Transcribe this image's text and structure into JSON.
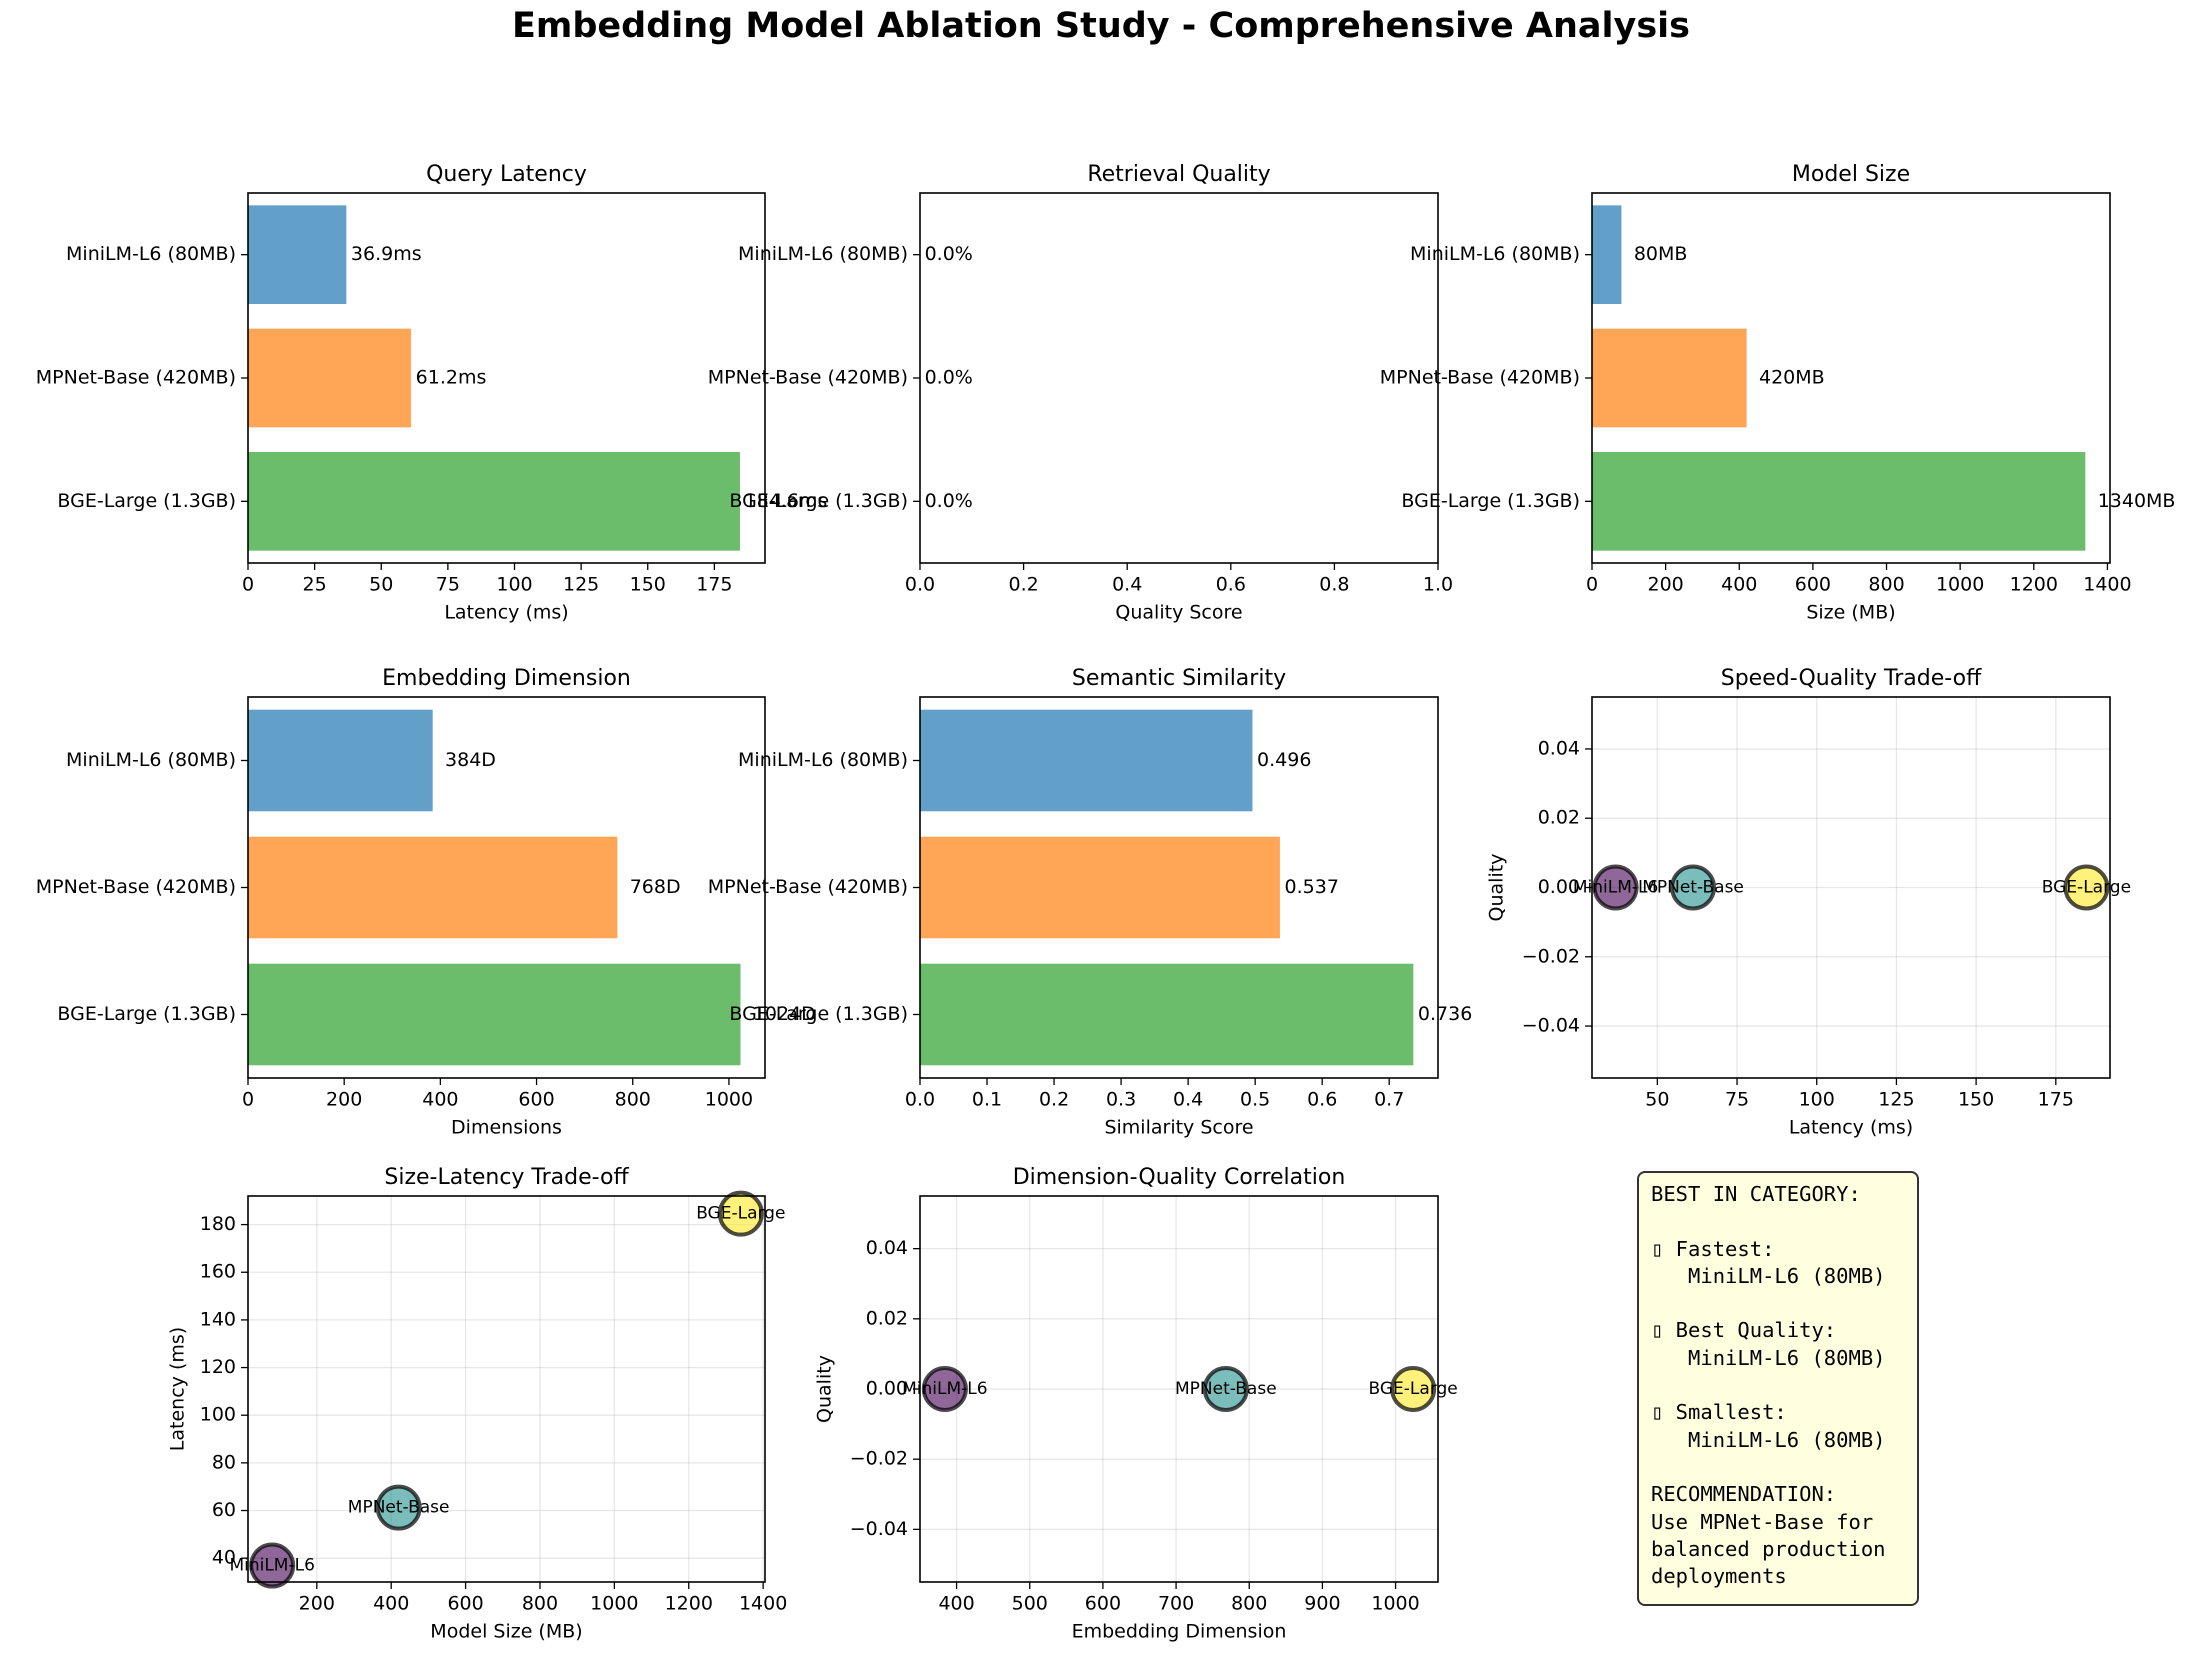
{
  "title": "Embedding Model Ablation Study - Comprehensive Analysis",
  "colors": {
    "blue": "#1f77b4",
    "orange": "#ff7f0e",
    "green": "#2ca02c",
    "purple": "#440154",
    "teal": "#21918c",
    "yellow": "#fde725"
  },
  "chart_data": [
    {
      "id": "latency",
      "type": "bar",
      "orientation": "horizontal",
      "title": "Query Latency",
      "xlabel": "Latency (ms)",
      "categories": [
        "MiniLM-L6 (80MB)",
        "MPNet-Base (420MB)",
        "BGE-Large (1.3GB)"
      ],
      "values": [
        36.9,
        61.2,
        184.6
      ],
      "labels": [
        "36.9ms",
        "61.2ms",
        "184.6ms"
      ],
      "xlim": [
        0,
        194
      ],
      "xticks": [
        0,
        25,
        50,
        75,
        100,
        125,
        150,
        175
      ]
    },
    {
      "id": "quality",
      "type": "bar",
      "orientation": "horizontal",
      "title": "Retrieval Quality",
      "xlabel": "Quality Score",
      "categories": [
        "MiniLM-L6 (80MB)",
        "MPNet-Base (420MB)",
        "BGE-Large (1.3GB)"
      ],
      "values": [
        0,
        0,
        0
      ],
      "labels": [
        "0.0%",
        "0.0%",
        "0.0%"
      ],
      "xlim": [
        0,
        1
      ],
      "xticks": [
        0.0,
        0.2,
        0.4,
        0.6,
        0.8,
        1.0
      ]
    },
    {
      "id": "size",
      "type": "bar",
      "orientation": "horizontal",
      "title": "Model Size",
      "xlabel": "Size (MB)",
      "categories": [
        "MiniLM-L6 (80MB)",
        "MPNet-Base (420MB)",
        "BGE-Large (1.3GB)"
      ],
      "values": [
        80,
        420,
        1340
      ],
      "labels": [
        "80MB",
        "420MB",
        "1340MB"
      ],
      "xlim": [
        0,
        1407
      ],
      "xticks": [
        0,
        200,
        400,
        600,
        800,
        1000,
        1200,
        1400
      ]
    },
    {
      "id": "dimension",
      "type": "bar",
      "orientation": "horizontal",
      "title": "Embedding Dimension",
      "xlabel": "Dimensions",
      "categories": [
        "MiniLM-L6 (80MB)",
        "MPNet-Base (420MB)",
        "BGE-Large (1.3GB)"
      ],
      "values": [
        384,
        768,
        1024
      ],
      "labels": [
        "384D",
        "768D",
        "1024D"
      ],
      "xlim": [
        0,
        1075
      ],
      "xticks": [
        0,
        200,
        400,
        600,
        800,
        1000
      ]
    },
    {
      "id": "similarity",
      "type": "bar",
      "orientation": "horizontal",
      "title": "Semantic Similarity",
      "xlabel": "Similarity Score",
      "categories": [
        "MiniLM-L6 (80MB)",
        "MPNet-Base (420MB)",
        "BGE-Large (1.3GB)"
      ],
      "values": [
        0.496,
        0.537,
        0.736
      ],
      "labels": [
        "0.496",
        "0.537",
        "0.736"
      ],
      "xlim": [
        0,
        0.7728
      ],
      "xticks": [
        0.0,
        0.1,
        0.2,
        0.3,
        0.4,
        0.5,
        0.6,
        0.7
      ]
    },
    {
      "id": "speed_quality",
      "type": "scatter",
      "title": "Speed-Quality Trade-off",
      "xlabel": "Latency (ms)",
      "ylabel": "Quality",
      "grid": true,
      "points": [
        {
          "label": "MiniLM-L6",
          "x": 36.9,
          "y": 0
        },
        {
          "label": "MPNet-Base",
          "x": 61.2,
          "y": 0
        },
        {
          "label": "BGE-Large",
          "x": 184.6,
          "y": 0
        }
      ],
      "xlim": [
        29.5,
        192
      ],
      "ylim": [
        -0.055,
        0.055
      ],
      "xticks": [
        50,
        75,
        100,
        125,
        150,
        175
      ],
      "yticks": [
        -0.04,
        -0.02,
        0.0,
        0.02,
        0.04
      ],
      "ytick_labels": [
        "−0.04",
        "−0.02",
        "0.00",
        "0.02",
        "0.04"
      ]
    },
    {
      "id": "size_latency",
      "type": "scatter",
      "title": "Size-Latency Trade-off",
      "xlabel": "Model Size (MB)",
      "ylabel": "Latency (ms)",
      "grid": true,
      "points": [
        {
          "label": "MiniLM-L6",
          "x": 80,
          "y": 36.9
        },
        {
          "label": "MPNet-Base",
          "x": 420,
          "y": 61.2
        },
        {
          "label": "BGE-Large",
          "x": 1340,
          "y": 184.6
        }
      ],
      "xlim": [
        15,
        1405
      ],
      "ylim": [
        30,
        192
      ],
      "xticks": [
        200,
        400,
        600,
        800,
        1000,
        1200,
        1400
      ],
      "yticks": [
        40,
        60,
        80,
        100,
        120,
        140,
        160,
        180
      ]
    },
    {
      "id": "dimension_quality",
      "type": "scatter",
      "title": "Dimension-Quality Correlation",
      "xlabel": "Embedding Dimension",
      "ylabel": "Quality",
      "grid": true,
      "points": [
        {
          "label": "MiniLM-L6",
          "x": 384,
          "y": 0
        },
        {
          "label": "MPNet-Base",
          "x": 768,
          "y": 0
        },
        {
          "label": "BGE-Large",
          "x": 1024,
          "y": 0
        }
      ],
      "xlim": [
        350,
        1058
      ],
      "ylim": [
        -0.055,
        0.055
      ],
      "xticks": [
        400,
        500,
        600,
        700,
        800,
        900,
        1000
      ],
      "yticks": [
        -0.04,
        -0.02,
        0.0,
        0.02,
        0.04
      ],
      "ytick_labels": [
        "−0.04",
        "−0.02",
        "0.00",
        "0.02",
        "0.04"
      ]
    }
  ],
  "summary": {
    "lines": [
      "BEST IN CATEGORY:",
      "",
      "▯ Fastest:",
      "   MiniLM-L6 (80MB)",
      "",
      "▯ Best Quality:",
      "   MiniLM-L6 (80MB)",
      "",
      "▯ Smallest:",
      "   MiniLM-L6 (80MB)",
      "",
      "RECOMMENDATION:",
      "Use MPNet-Base for",
      "balanced production",
      "deployments"
    ]
  }
}
